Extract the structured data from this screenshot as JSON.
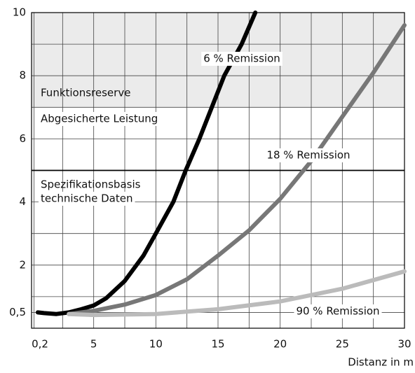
{
  "chart_data": {
    "type": "line",
    "xlabel": "Distanz in m",
    "xlim": [
      0,
      30
    ],
    "ylim": [
      0,
      10
    ],
    "xticks": [
      {
        "value": 0.2,
        "label": "0,2"
      },
      5,
      10,
      15,
      20,
      25,
      30
    ],
    "yticks": [
      {
        "value": 0.5,
        "label": "0,5"
      },
      2,
      4,
      6,
      8,
      10
    ],
    "minor_xticks": [
      2.5,
      7.5,
      12.5,
      17.5,
      22.5,
      27.5
    ],
    "minor_yticks": [
      1,
      3,
      5,
      7,
      9
    ],
    "grid": true,
    "band": {
      "from": 7,
      "to": 10,
      "color": "#ebebeb"
    },
    "reference_line": 5,
    "annotations": [
      "Funktionsreserve",
      "Abgesicherte Leistung",
      "Spezifikationsbasis",
      "technische Daten"
    ],
    "series": [
      {
        "name": "6 % Remission",
        "color": "#000000",
        "x": [
          0.5,
          1,
          2,
          3,
          4,
          5,
          6,
          7.5,
          9,
          10,
          11.4,
          12.4,
          13.5,
          15.5,
          16.9,
          18
        ],
        "values": [
          0.5,
          0.48,
          0.45,
          0.5,
          0.6,
          0.72,
          0.95,
          1.5,
          2.3,
          3.0,
          4,
          5,
          6,
          8,
          9,
          10
        ]
      },
      {
        "name": "18 % Remission",
        "color": "#777777",
        "x": [
          3,
          5,
          7.5,
          10,
          12.5,
          15,
          17.5,
          20,
          22.5,
          25,
          27.5,
          30
        ],
        "values": [
          0.45,
          0.55,
          0.75,
          1.05,
          1.55,
          2.3,
          3.1,
          4.1,
          5.3,
          6.7,
          8.1,
          9.6
        ]
      },
      {
        "name": "90 % Remission",
        "color": "#bbbbbb",
        "x": [
          3,
          5,
          10,
          15,
          20,
          25,
          30
        ],
        "values": [
          0.45,
          0.42,
          0.45,
          0.6,
          0.85,
          1.25,
          1.8
        ]
      }
    ]
  }
}
